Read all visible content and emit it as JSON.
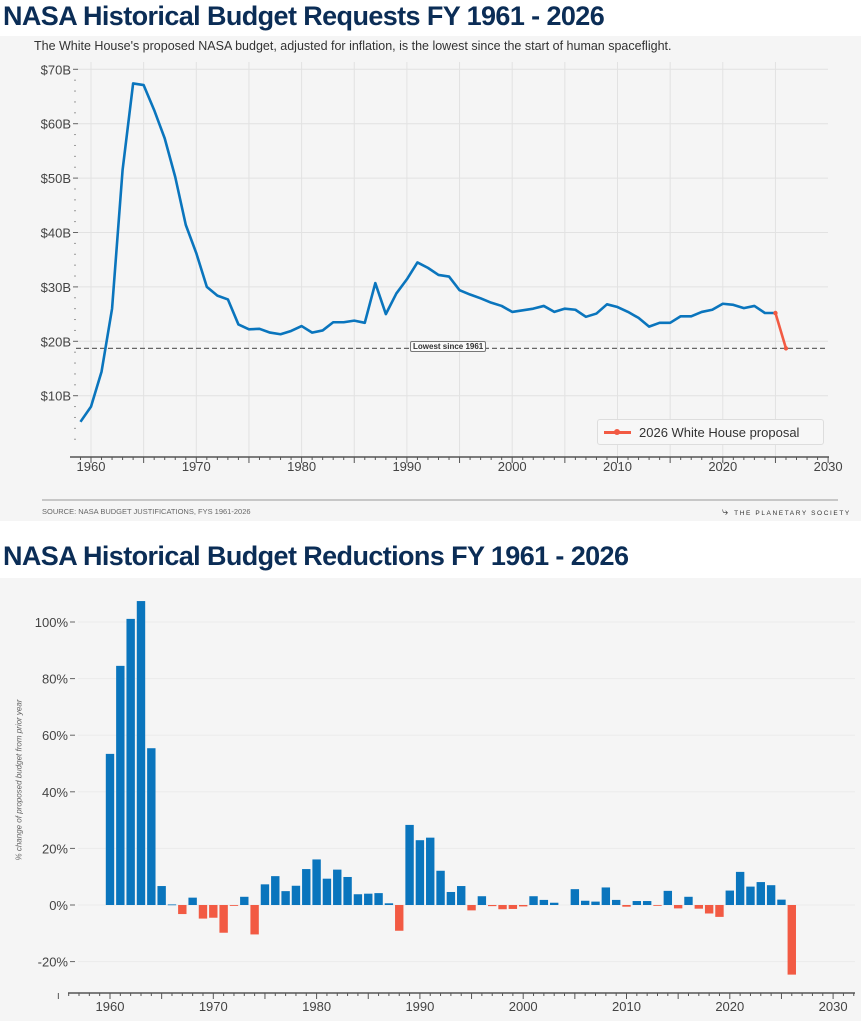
{
  "chart_data": [
    {
      "type": "line",
      "title": "NASA Historical Budget Requests FY 1961 - 2026",
      "subtitle": "The White House's proposed NASA budget, adjusted for inflation, is the lowest since the start of human spaceflight.",
      "x": [
        1959,
        1960,
        1961,
        1962,
        1963,
        1964,
        1965,
        1966,
        1967,
        1968,
        1969,
        1970,
        1971,
        1972,
        1973,
        1974,
        1975,
        1976,
        1977,
        1978,
        1979,
        1980,
        1981,
        1982,
        1983,
        1984,
        1985,
        1986,
        1987,
        1988,
        1989,
        1990,
        1991,
        1992,
        1993,
        1994,
        1995,
        1996,
        1997,
        1998,
        1999,
        2000,
        2001,
        2002,
        2003,
        2004,
        2005,
        2006,
        2007,
        2008,
        2009,
        2010,
        2011,
        2012,
        2013,
        2014,
        2015,
        2016,
        2017,
        2018,
        2019,
        2020,
        2021,
        2022,
        2023,
        2024,
        2025,
        2026
      ],
      "series": [
        {
          "values": [
            5.2,
            8.0,
            14.4,
            26.0,
            51.5,
            67.4,
            67.1,
            62.5,
            57.3,
            50.2,
            41.4,
            36.2,
            30.0,
            28.4,
            27.7,
            23.1,
            22.2,
            22.3,
            21.6,
            21.3,
            21.9,
            22.8,
            21.6,
            22.0,
            23.5,
            23.5,
            23.8,
            23.4,
            30.7,
            25.0,
            28.8,
            31.4,
            34.5,
            33.5,
            32.2,
            31.9,
            29.4,
            28.6,
            27.9,
            27.1,
            26.5,
            25.4,
            25.7,
            26.0,
            26.5,
            25.4,
            26.0,
            25.8,
            24.5,
            25.1,
            26.8,
            26.3,
            25.4,
            24.3,
            22.7,
            23.4,
            23.4,
            24.6,
            24.6,
            25.4,
            25.8,
            26.9,
            26.7,
            26.1,
            26.5,
            25.2,
            25.2,
            null
          ],
          "color": "#0a75bd"
        },
        {
          "name": "2026 White House proposal",
          "x": [
            2025,
            2026
          ],
          "values": [
            25.2,
            18.7
          ],
          "color": "#f25a43"
        }
      ],
      "annotation": {
        "label": "Lowest since 1961",
        "value": 18.7
      },
      "ylim": [
        0,
        70
      ],
      "yticks": [
        70,
        60,
        50,
        40,
        30,
        20,
        10
      ],
      "ytick_labels": [
        "$70B",
        "$60B",
        "$50B",
        "$40B",
        "$30B",
        "$20B",
        "$10B"
      ],
      "xlim": [
        1958.5,
        2030
      ],
      "xticks": [
        1960,
        1970,
        1980,
        1990,
        2000,
        2010,
        2020,
        2030
      ],
      "grid": true,
      "legend": "bottom-right",
      "source": "SOURCE: NASA BUDGET JUSTIFICATIONS, FYS 1961-2026",
      "brand": "THE PLANETARY SOCIETY"
    },
    {
      "type": "bar",
      "title": "NASA Historical Budget Reductions FY 1961 - 2026",
      "ylabel": "% change of proposed budget from prior year",
      "x": [
        1960,
        1961,
        1962,
        1963,
        1964,
        1965,
        1966,
        1967,
        1968,
        1969,
        1970,
        1971,
        1972,
        1973,
        1974,
        1975,
        1976,
        1977,
        1978,
        1979,
        1980,
        1981,
        1982,
        1983,
        1984,
        1985,
        1986,
        1987,
        1988,
        1989,
        1990,
        1991,
        1992,
        1993,
        1994,
        1995,
        1996,
        1997,
        1998,
        1999,
        2000,
        2001,
        2002,
        2003,
        2004,
        2005,
        2006,
        2007,
        2008,
        2009,
        2010,
        2011,
        2012,
        2013,
        2014,
        2015,
        2016,
        2017,
        2018,
        2019,
        2020,
        2021,
        2022,
        2023,
        2024,
        2025,
        2026
      ],
      "values": [
        53.4,
        84.5,
        101.1,
        107.4,
        55.4,
        6.7,
        0.2,
        -3.2,
        2.6,
        -4.8,
        -4.5,
        -9.8,
        -0.3,
        2.9,
        -10.4,
        7.3,
        10.2,
        4.9,
        6.8,
        12.7,
        16.1,
        9.3,
        12.5,
        9.9,
        3.8,
        4.0,
        4.2,
        0.6,
        -9.1,
        28.3,
        22.9,
        23.8,
        12.1,
        4.6,
        6.7,
        -1.9,
        3.1,
        -0.4,
        -1.5,
        -1.4,
        -0.5,
        3.1,
        1.8,
        0.8,
        0,
        5.6,
        1.5,
        1.2,
        6.2,
        1.8,
        -0.6,
        1.4,
        1.4,
        -0.2,
        5.0,
        -1.2,
        2.9,
        -1.3,
        -3.0,
        -4.2,
        5.1,
        11.7,
        6.5,
        8.1,
        7.0,
        1.9,
        -24.6
      ],
      "positive_color": "#0a75bd",
      "negative_color": "#f25a43",
      "ylim": [
        -30,
        110
      ],
      "yticks": [
        100,
        80,
        60,
        40,
        20,
        0,
        -20
      ],
      "ytick_labels": [
        "100%",
        "80%",
        "60%",
        "40%",
        "20%",
        "0%",
        "-20%"
      ],
      "xlim": [
        1955,
        2033
      ],
      "xticks": [
        1960,
        1970,
        1980,
        1990,
        2000,
        2010,
        2020,
        2030
      ],
      "grid": true
    }
  ]
}
